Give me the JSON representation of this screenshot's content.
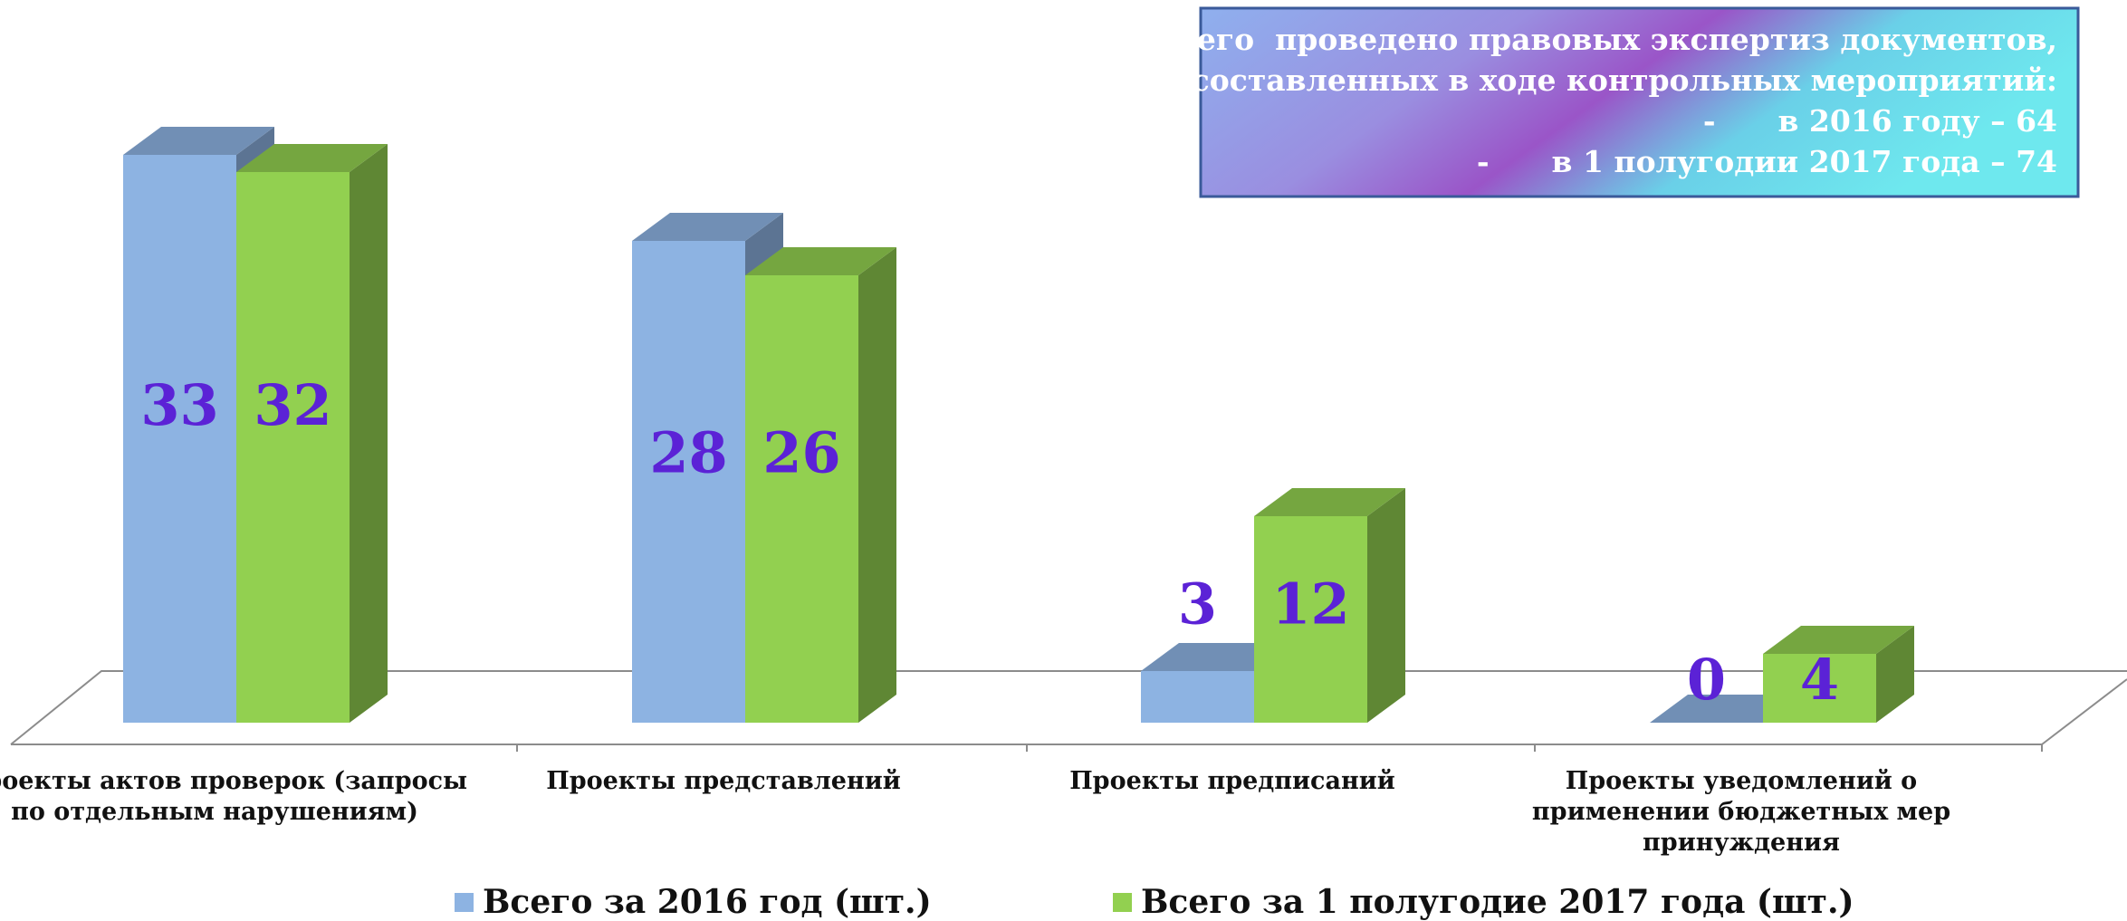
{
  "chart_data": {
    "type": "bar3d",
    "categories": [
      "Проекты актов проверок (запросы по отдельным нарушениям)",
      "Проекты представлений",
      "Проекты предписаний",
      "Проекты уведомлений о применении бюджетных мер принуждения"
    ],
    "series": [
      {
        "name": "Всего за 2016 год (шт.)",
        "color": "#8db3e2",
        "values": [
          33,
          28,
          3,
          0
        ]
      },
      {
        "name": "Всего за 1 полугодие 2017 года (шт.)",
        "color": "#92d050",
        "values": [
          32,
          26,
          12,
          4
        ]
      }
    ],
    "ylim": [
      0,
      35
    ],
    "legend": "bottom",
    "annotation": {
      "lines": [
        "Всего  проведено правовых экспертиз документов,",
        "составленных в ходе контрольных мероприятий:",
        "-      в 2016 году – 64",
        "-      в 1 полугодии 2017 года – 74"
      ]
    }
  }
}
